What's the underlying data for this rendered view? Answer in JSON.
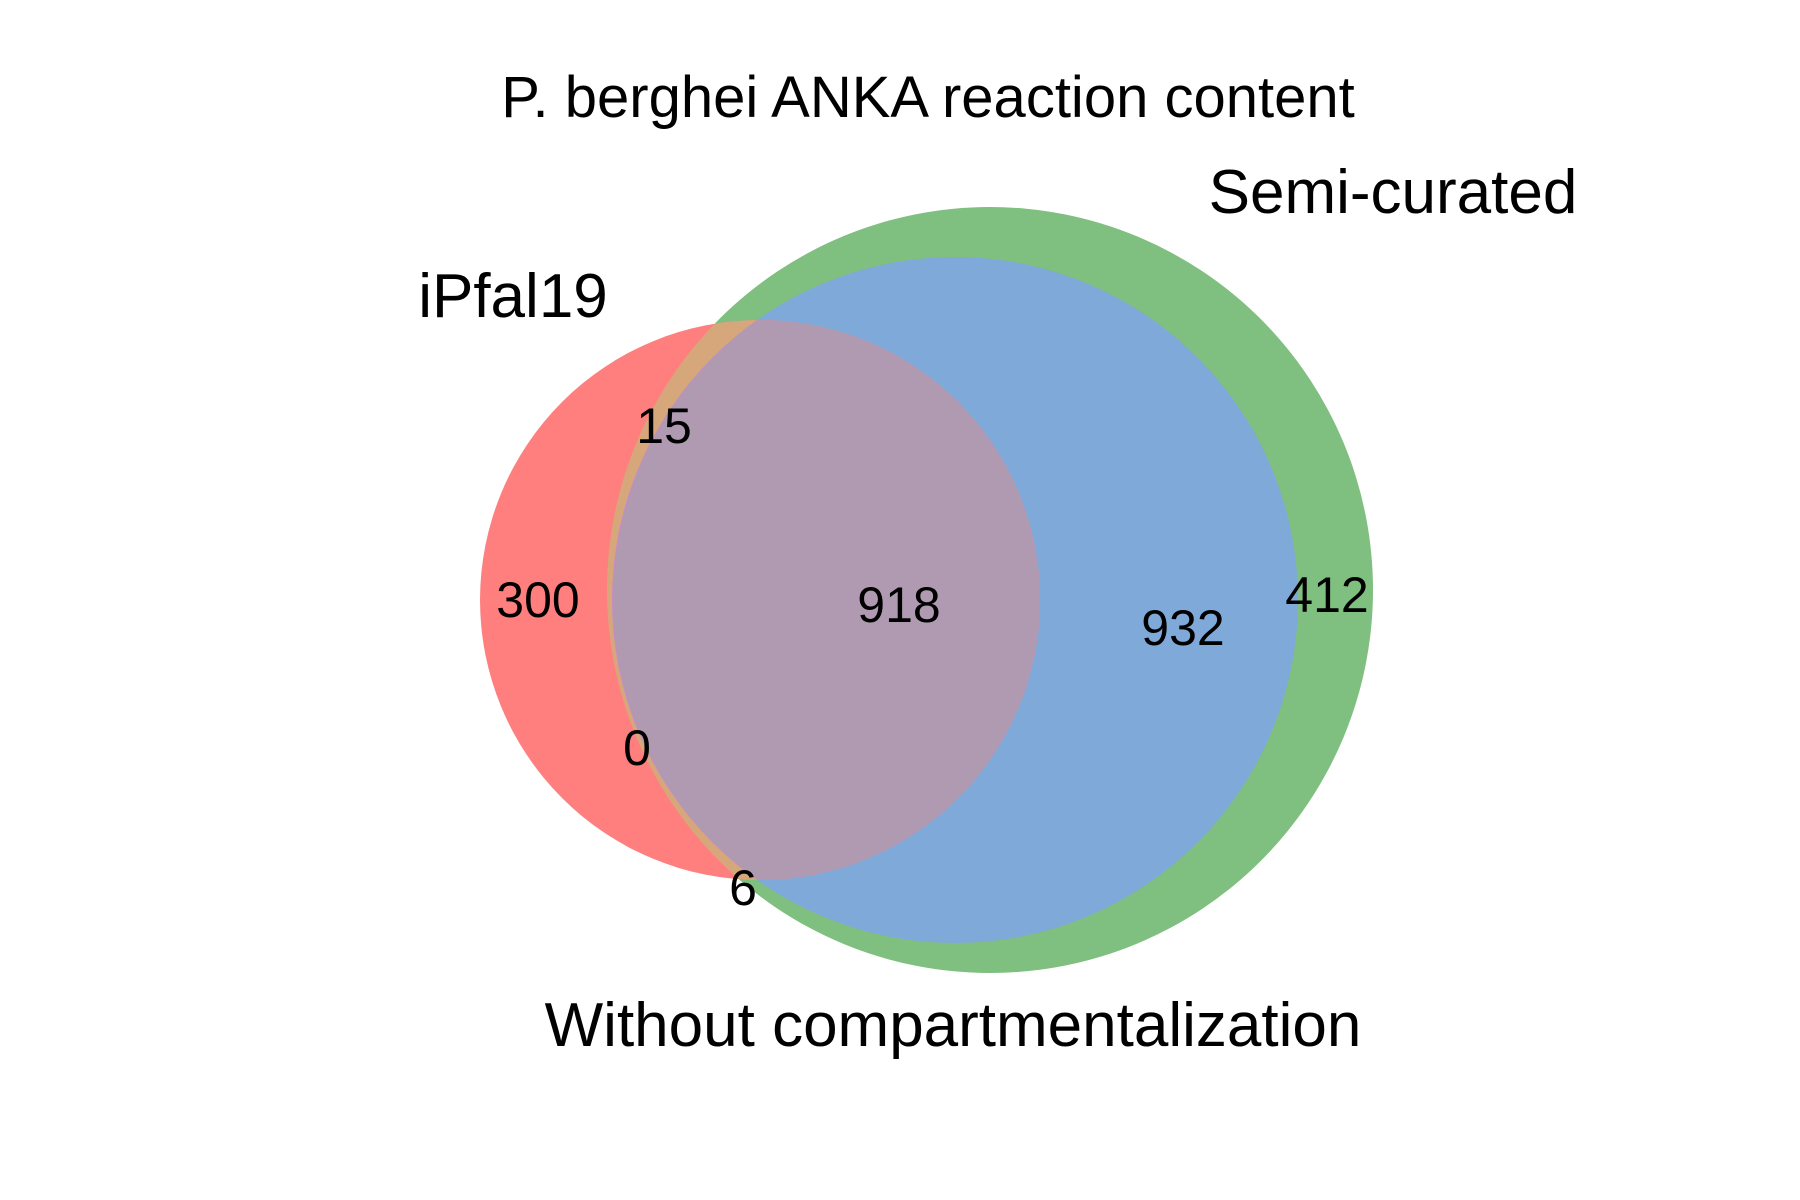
{
  "diagram": {
    "type": "venn3",
    "title": "P. berghei ANKA reaction content",
    "sets": [
      {
        "name": "iPfal19",
        "color": "#ff7f7f"
      },
      {
        "name": "Semi-curated",
        "color": "#7fbf7f"
      },
      {
        "name": "Without compartmentalization",
        "color": "#7fa9d8"
      }
    ],
    "overlap_colors": {
      "all_three": "#b09ab2",
      "red_green": "#d7a77c",
      "red_blue": "#c889c8"
    },
    "counts": {
      "iPfal19_only": "300",
      "iPfal19_and_semi_curated": "15",
      "all_three": "918",
      "iPfal19_and_without": "0",
      "edge_bottom": "6",
      "semi_curated_and_without": "932",
      "semi_curated_only": "412"
    }
  }
}
